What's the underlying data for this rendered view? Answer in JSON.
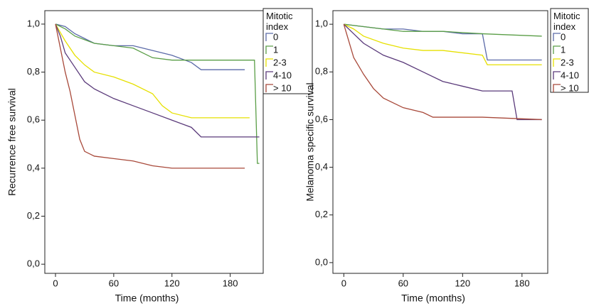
{
  "chart_data": [
    {
      "type": "line",
      "ylabel": "Recurrence free survival",
      "xlabel": "Time (months)",
      "legend_title": "Mitotic index",
      "xlim": [
        -11,
        214
      ],
      "ylim": [
        -0.038,
        1.056
      ],
      "xticks": [
        0,
        60,
        120,
        180
      ],
      "yticks": [
        {
          "value": 0.0,
          "label": "0,0"
        },
        {
          "value": 0.2,
          "label": "0,2"
        },
        {
          "value": 0.4,
          "label": "0,4"
        },
        {
          "value": 0.6,
          "label": "0,6"
        },
        {
          "value": 0.8,
          "label": "0,8"
        },
        {
          "value": 1.0,
          "label": "1,0"
        }
      ],
      "series": [
        {
          "name": "0",
          "color": "#5b6aa8",
          "x": [
            0,
            10,
            20,
            30,
            40,
            60,
            80,
            100,
            120,
            140,
            150,
            195
          ],
          "values": [
            1,
            0.99,
            0.96,
            0.94,
            0.92,
            0.91,
            0.91,
            0.89,
            0.87,
            0.84,
            0.81,
            0.81
          ]
        },
        {
          "name": "1",
          "color": "#5a9e47",
          "x": [
            0,
            10,
            20,
            40,
            60,
            80,
            90,
            100,
            120,
            205,
            208,
            210
          ],
          "values": [
            1,
            0.98,
            0.95,
            0.92,
            0.91,
            0.9,
            0.88,
            0.86,
            0.85,
            0.85,
            0.42,
            0.42
          ]
        },
        {
          "name": "2-3",
          "color": "#e6e000",
          "x": [
            0,
            10,
            20,
            30,
            40,
            60,
            80,
            100,
            110,
            120,
            140,
            200
          ],
          "values": [
            1,
            0.93,
            0.87,
            0.83,
            0.8,
            0.78,
            0.75,
            0.71,
            0.66,
            0.63,
            0.61,
            0.61
          ]
        },
        {
          "name": "4-10",
          "color": "#5a3a7a",
          "x": [
            0,
            5,
            10,
            20,
            30,
            40,
            60,
            80,
            100,
            120,
            140,
            150,
            210
          ],
          "values": [
            1,
            0.95,
            0.88,
            0.82,
            0.76,
            0.73,
            0.69,
            0.66,
            0.63,
            0.6,
            0.57,
            0.53,
            0.53
          ]
        },
        {
          "name": "> 10",
          "color": "#a8493a",
          "x": [
            0,
            5,
            10,
            15,
            20,
            25,
            30,
            40,
            60,
            80,
            100,
            120,
            195
          ],
          "values": [
            1,
            0.9,
            0.8,
            0.72,
            0.62,
            0.52,
            0.47,
            0.45,
            0.44,
            0.43,
            0.41,
            0.4,
            0.4
          ]
        }
      ]
    },
    {
      "type": "line",
      "ylabel": "Melanoma specific survival",
      "xlabel": "Time (months)",
      "legend_title": "Mitotic index",
      "xlim": [
        -11,
        206
      ],
      "ylim": [
        -0.045,
        1.057
      ],
      "xticks": [
        0,
        60,
        120,
        180
      ],
      "yticks": [
        {
          "value": 0.0,
          "label": "0,0"
        },
        {
          "value": 0.2,
          "label": "0,2"
        },
        {
          "value": 0.4,
          "label": "0,4"
        },
        {
          "value": 0.6,
          "label": "0,6"
        },
        {
          "value": 0.8,
          "label": "0,8"
        },
        {
          "value": 1.0,
          "label": "1,0"
        }
      ],
      "series": [
        {
          "name": "0",
          "color": "#5b6aa8",
          "x": [
            0,
            20,
            40,
            60,
            80,
            100,
            120,
            140,
            145,
            200
          ],
          "values": [
            1,
            0.99,
            0.98,
            0.98,
            0.97,
            0.97,
            0.96,
            0.96,
            0.85,
            0.85
          ]
        },
        {
          "name": "1",
          "color": "#5a9e47",
          "x": [
            0,
            20,
            40,
            60,
            100,
            140,
            200
          ],
          "values": [
            1,
            0.99,
            0.98,
            0.97,
            0.97,
            0.96,
            0.95
          ]
        },
        {
          "name": "2-3",
          "color": "#e6e000",
          "x": [
            0,
            10,
            20,
            40,
            60,
            80,
            100,
            140,
            145,
            200
          ],
          "values": [
            1,
            0.98,
            0.95,
            0.92,
            0.9,
            0.89,
            0.89,
            0.87,
            0.83,
            0.83
          ]
        },
        {
          "name": "4-10",
          "color": "#5a3a7a",
          "x": [
            0,
            10,
            20,
            40,
            60,
            80,
            100,
            120,
            140,
            170,
            175,
            200
          ],
          "values": [
            1,
            0.96,
            0.92,
            0.87,
            0.84,
            0.8,
            0.76,
            0.74,
            0.72,
            0.72,
            0.6,
            0.6
          ]
        },
        {
          "name": "> 10",
          "color": "#a8493a",
          "x": [
            0,
            5,
            10,
            20,
            30,
            40,
            60,
            80,
            90,
            140,
            200
          ],
          "values": [
            1,
            0.93,
            0.86,
            0.79,
            0.73,
            0.69,
            0.65,
            0.63,
            0.61,
            0.61,
            0.6
          ]
        }
      ]
    }
  ]
}
